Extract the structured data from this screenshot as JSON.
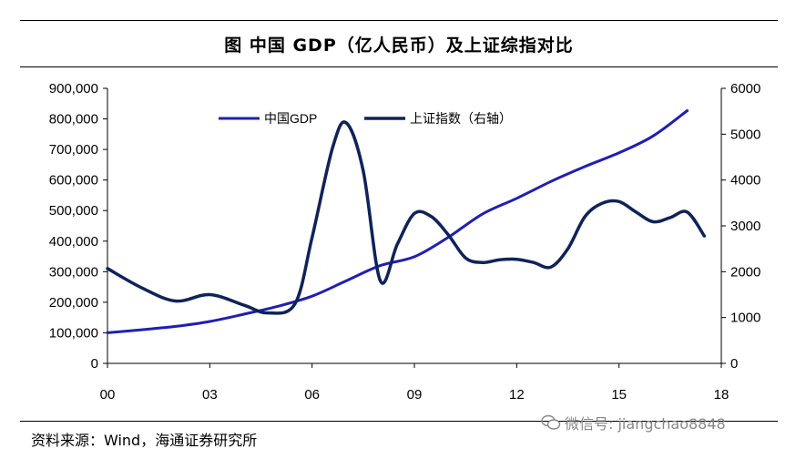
{
  "title": "图    中国 GDP（亿人民币）及上证综指对比",
  "source": "资料来源：Wind，海通证券研究所",
  "watermark": "微信号: jiangchao8848",
  "colors": {
    "gdp": "#1f1fb4",
    "index": "#0f2359",
    "axis": "#000000"
  },
  "chart_data": {
    "type": "line",
    "x_tick_labels": [
      "00",
      "03",
      "06",
      "09",
      "12",
      "15",
      "18"
    ],
    "x_ticks": [
      2000,
      2003,
      2006,
      2009,
      2012,
      2015,
      2018
    ],
    "xlim": [
      2000,
      2018
    ],
    "y_left": {
      "lim": [
        0,
        900000
      ],
      "ticks": [
        0,
        100000,
        200000,
        300000,
        400000,
        500000,
        600000,
        700000,
        800000,
        900000
      ],
      "tick_labels": [
        "0",
        "100,000",
        "200,000",
        "300,000",
        "400,000",
        "500,000",
        "600,000",
        "700,000",
        "800,000",
        "900,000"
      ]
    },
    "y_right": {
      "lim": [
        0,
        6000
      ],
      "ticks": [
        0,
        1000,
        2000,
        3000,
        4000,
        5000,
        6000
      ],
      "tick_labels": [
        "0",
        "1000",
        "2000",
        "3000",
        "4000",
        "5000",
        "6000"
      ]
    },
    "legend": [
      "中国GDP",
      "上证指数（右轴）"
    ],
    "legend_position": "top-center",
    "series": [
      {
        "name": "中国GDP",
        "axis": "left",
        "x": [
          2000,
          2001,
          2002,
          2003,
          2004,
          2005,
          2006,
          2007,
          2008,
          2009,
          2010,
          2011,
          2012,
          2013,
          2014,
          2015,
          2016,
          2017
        ],
        "y": [
          100000,
          110000,
          121000,
          137000,
          161000,
          187000,
          220000,
          270000,
          320000,
          349000,
          413000,
          489000,
          540000,
          595000,
          644000,
          689000,
          744000,
          827000
        ]
      },
      {
        "name": "上证指数（右轴）",
        "axis": "right",
        "x": [
          2000,
          2001,
          2002,
          2003,
          2004,
          2004.7,
          2005.5,
          2006,
          2006.6,
          2007,
          2007.5,
          2008,
          2008.5,
          2009,
          2009.5,
          2010,
          2010.5,
          2011,
          2011.5,
          2012,
          2012.5,
          2013,
          2013.5,
          2014,
          2014.5,
          2015,
          2015.5,
          2016,
          2016.5,
          2017,
          2017.5
        ],
        "y": [
          2070,
          1650,
          1360,
          1500,
          1270,
          1100,
          1300,
          2750,
          4700,
          5250,
          4200,
          1800,
          2600,
          3270,
          3200,
          2800,
          2300,
          2200,
          2260,
          2270,
          2200,
          2100,
          2500,
          3200,
          3490,
          3530,
          3300,
          3090,
          3180,
          3300,
          2780
        ]
      }
    ]
  }
}
